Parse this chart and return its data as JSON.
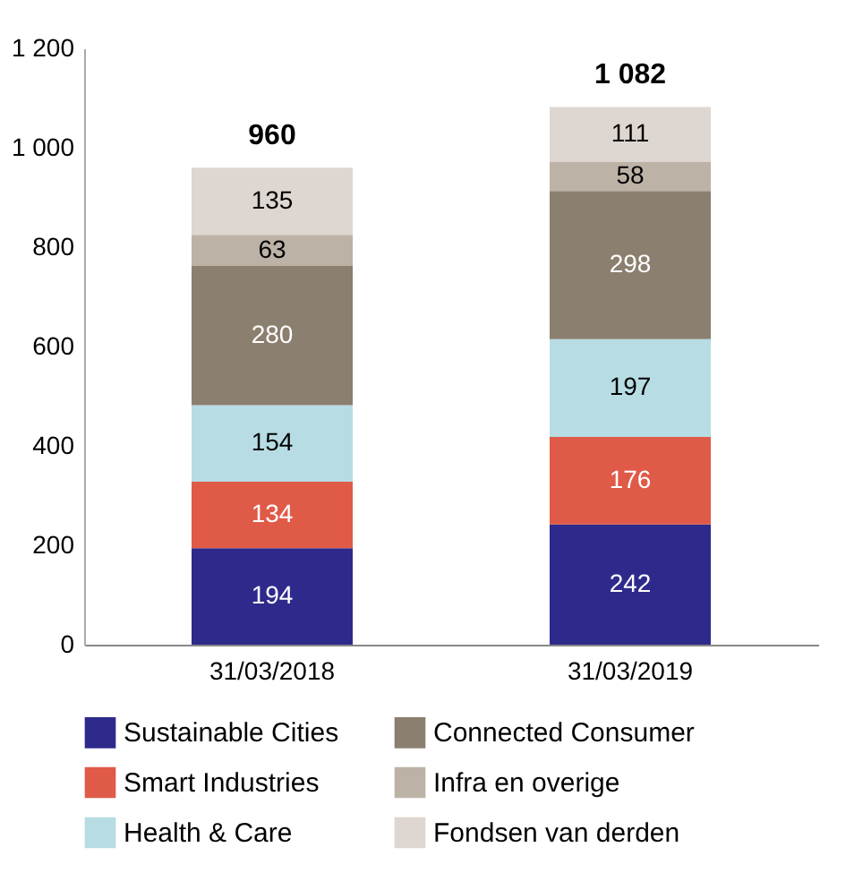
{
  "chart_data": {
    "type": "bar",
    "stacked": true,
    "categories": [
      "31/03/2018",
      "31/03/2019"
    ],
    "series": [
      {
        "name": "Sustainable Cities",
        "color": "#2e2a8c",
        "values": [
          194,
          242
        ]
      },
      {
        "name": "Smart Industries",
        "color": "#e05a48",
        "values": [
          134,
          176
        ]
      },
      {
        "name": "Health & Care",
        "color": "#b7dce4",
        "values": [
          154,
          197
        ]
      },
      {
        "name": "Connected Consumer",
        "color": "#8b7f6f",
        "values": [
          280,
          298
        ]
      },
      {
        "name": "Infra en overige",
        "color": "#bdb2a6",
        "values": [
          63,
          58
        ]
      },
      {
        "name": "Fondsen van derden",
        "color": "#ded6d0",
        "values": [
          135,
          111
        ]
      }
    ],
    "data_labels": true,
    "totals": [
      "960",
      "1 082"
    ],
    "ylim": [
      0,
      1200
    ],
    "yticks": [
      0,
      200,
      400,
      600,
      800,
      {
        "value": 1000,
        "label": "1 000"
      },
      {
        "value": 1200,
        "label": "1 200"
      }
    ],
    "grid": false,
    "legend": "bottom"
  }
}
